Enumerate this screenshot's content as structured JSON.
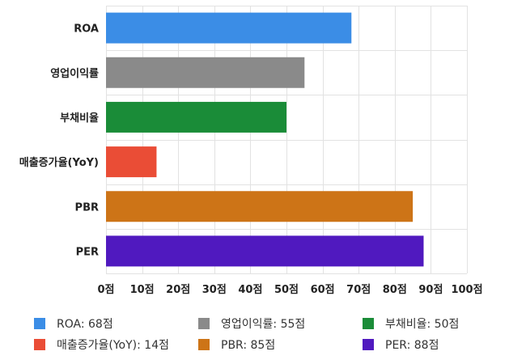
{
  "chart_data": {
    "type": "bar",
    "orientation": "horizontal",
    "title": "",
    "xlabel": "",
    "ylabel": "",
    "categories": [
      "ROA",
      "영업이익률",
      "부채비율",
      "매출증가율(YoY)",
      "PBR",
      "PER"
    ],
    "values": [
      68,
      55,
      50,
      14,
      85,
      88
    ],
    "colors": [
      "#3b8de6",
      "#8a8a8a",
      "#1a8c38",
      "#ea4d36",
      "#cd7417",
      "#5019bf"
    ],
    "xlim": [
      0,
      100
    ],
    "xticks": [
      0,
      10,
      20,
      30,
      40,
      50,
      60,
      70,
      80,
      90,
      100
    ],
    "tick_suffix": "점",
    "grid": true,
    "legend_position": "bottom",
    "legend": [
      "ROA: 68점",
      "영업이익률: 55점",
      "부채비율: 50점",
      "매출증가율(YoY): 14점",
      "PBR: 85점",
      "PER: 88점"
    ]
  }
}
